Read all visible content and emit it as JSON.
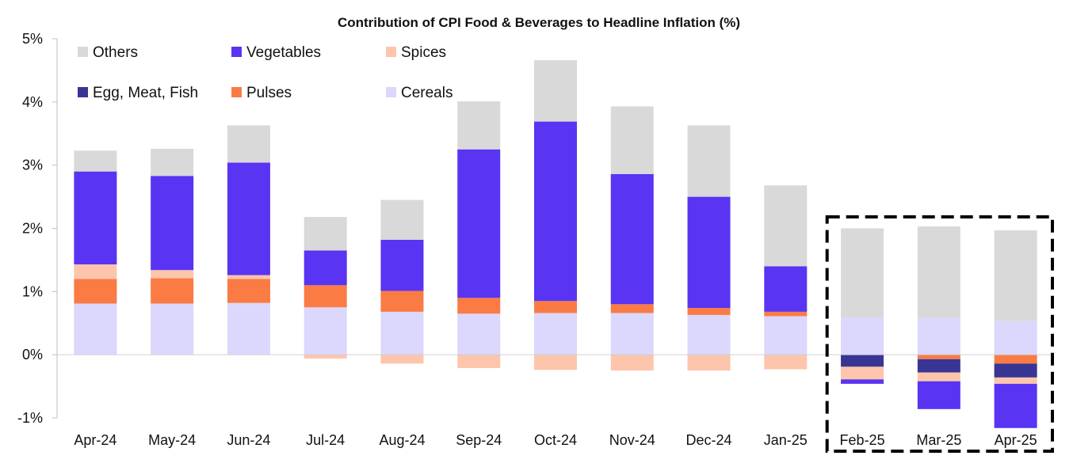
{
  "chart_data": {
    "type": "bar",
    "stacked": true,
    "title": "Contribution of CPI Food & Beverages to Headline Inflation (%)",
    "xlabel": "",
    "ylabel": "",
    "ylim": [
      -1,
      5
    ],
    "yticks": [
      5,
      4,
      3,
      2,
      1,
      0,
      -1
    ],
    "ytick_labels": [
      "5%",
      "4%",
      "3%",
      "2%",
      "1%",
      "0%",
      "-1%"
    ],
    "grid": false,
    "legend_position": "top-left",
    "categories": [
      "Apr-24",
      "May-24",
      "Jun-24",
      "Jul-24",
      "Aug-24",
      "Sep-24",
      "Oct-24",
      "Nov-24",
      "Dec-24",
      "Jan-25",
      "Feb-25",
      "Mar-25",
      "Apr-25"
    ],
    "series": [
      {
        "name": "Cereals",
        "color": "#DCD7FC",
        "values": [
          0.81,
          0.81,
          0.82,
          0.75,
          0.68,
          0.65,
          0.66,
          0.66,
          0.63,
          0.61,
          0.59,
          0.58,
          0.53
        ]
      },
      {
        "name": "Pulses",
        "color": "#FA7B44",
        "values": [
          0.39,
          0.4,
          0.38,
          0.35,
          0.33,
          0.25,
          0.19,
          0.14,
          0.11,
          0.07,
          0.0,
          -0.07,
          -0.14
        ]
      },
      {
        "name": "Egg, Meat, Fish",
        "color": "#383594",
        "values": [
          0.0,
          0.0,
          0.0,
          0.0,
          0.0,
          0.0,
          0.0,
          0.0,
          0.0,
          0.0,
          -0.19,
          -0.21,
          -0.22
        ]
      },
      {
        "name": "Spices",
        "color": "#FDC5AB",
        "values": [
          0.23,
          0.13,
          0.06,
          -0.06,
          -0.14,
          -0.21,
          -0.24,
          -0.25,
          -0.25,
          -0.23,
          -0.2,
          -0.14,
          -0.1
        ]
      },
      {
        "name": "Vegetables",
        "color": "#5934F2",
        "values": [
          1.47,
          1.49,
          1.78,
          0.55,
          0.81,
          2.35,
          2.84,
          2.06,
          1.76,
          0.72,
          -0.07,
          -0.44,
          -0.7
        ]
      },
      {
        "name": "Others",
        "color": "#D9D9D9",
        "values": [
          0.33,
          0.43,
          0.59,
          0.53,
          0.63,
          0.76,
          0.97,
          1.07,
          1.13,
          1.28,
          1.41,
          1.45,
          1.44
        ]
      }
    ],
    "legend_order": [
      "Others",
      "Vegetables",
      "Spices",
      "Egg, Meat, Fish",
      "Pulses",
      "Cereals"
    ],
    "highlight": {
      "categories": [
        "Feb-25",
        "Mar-25",
        "Apr-25"
      ],
      "style": "dashed-box"
    }
  }
}
